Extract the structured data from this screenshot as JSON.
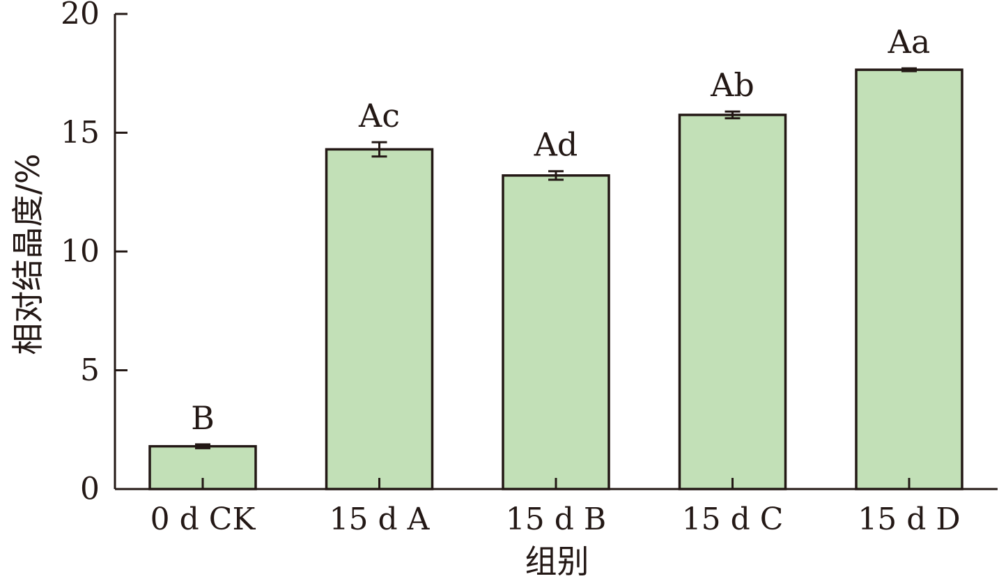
{
  "chart_data": {
    "type": "bar",
    "title": "",
    "xlabel": "组别",
    "ylabel": "相对结晶度/%",
    "ylim": [
      0,
      20
    ],
    "yticks": [
      0,
      5,
      10,
      15,
      20
    ],
    "categories": [
      "0 d CK",
      "15 d A",
      "15 d B",
      "15 d C",
      "15 d D"
    ],
    "values": [
      1.8,
      14.3,
      13.2,
      15.75,
      17.65
    ],
    "errors": [
      0.08,
      0.3,
      0.18,
      0.14,
      0.06
    ],
    "significance": [
      "B",
      "Ac",
      "Ad",
      "Ab",
      "Aa"
    ],
    "grid": false,
    "colors": {
      "bar_fill": "#c2e0b7",
      "bar_stroke": "#231815",
      "axis": "#231815"
    }
  }
}
